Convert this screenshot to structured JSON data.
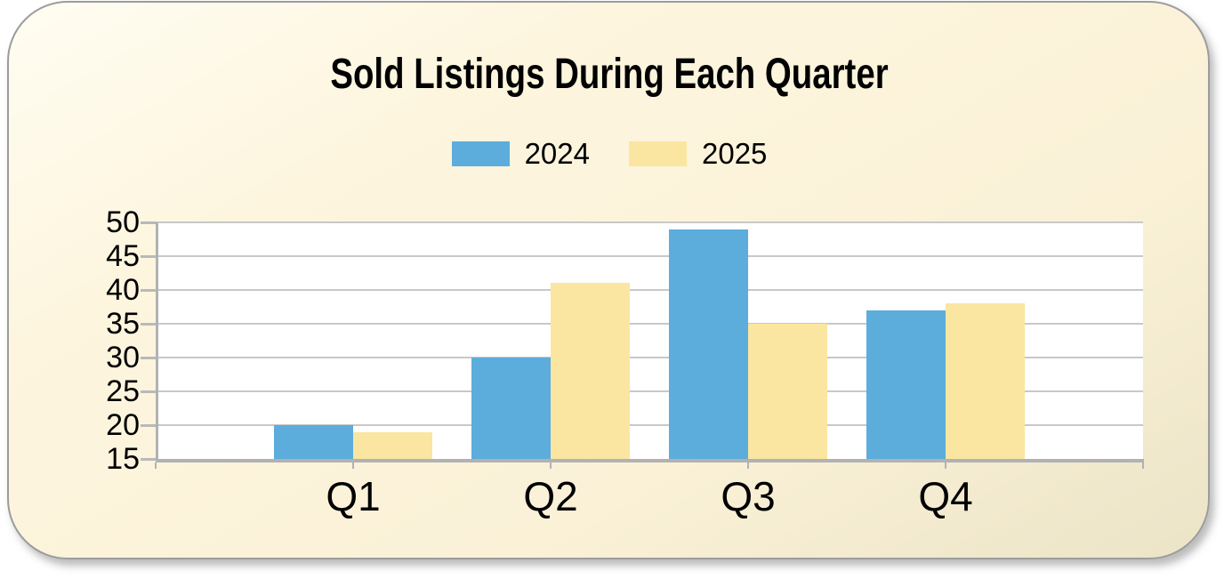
{
  "page": {
    "background": "#FFFFFF"
  },
  "card": {
    "background": "#FDF4DE",
    "border_color": "#9C9C9C"
  },
  "chart_data": {
    "type": "bar",
    "title": "Sold Listings During Each Quarter",
    "categories": [
      "Q1",
      "Q2",
      "Q3",
      "Q4"
    ],
    "series": [
      {
        "name": "2024",
        "color": "#5CADDC",
        "values": [
          20,
          30,
          49,
          37
        ]
      },
      {
        "name": "2025",
        "color": "#FBE6A1",
        "values": [
          19,
          41,
          35,
          38
        ]
      }
    ],
    "ylim": [
      15,
      50
    ],
    "yticks": [
      15,
      20,
      25,
      30,
      35,
      40,
      45,
      50
    ],
    "xlabel": "",
    "ylabel": "",
    "grid": true,
    "legend_position": "top",
    "plot_bg": "#FFFFFF",
    "gridline_color": "#C8C8C8",
    "axis_color": "#B2B2B2",
    "tick_color": "#B9B9B9",
    "text_color": "#000000"
  }
}
